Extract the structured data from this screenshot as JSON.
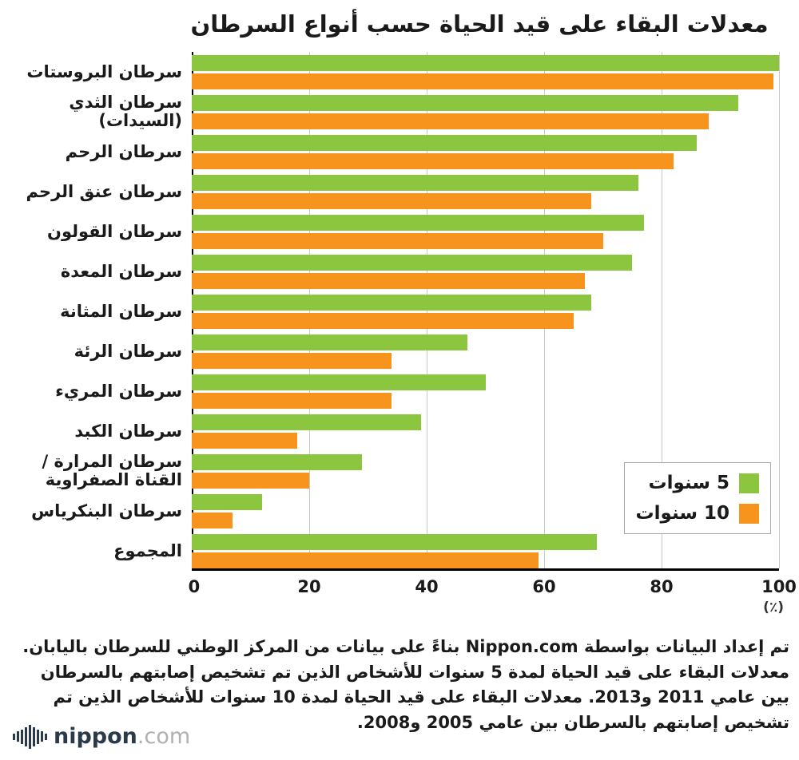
{
  "title": "معدلات البقاء على قيد الحياة حسب أنواع السرطان",
  "chart_data": {
    "type": "bar",
    "orientation": "horizontal",
    "title": "معدلات البقاء على قيد الحياة حسب أنواع السرطان",
    "categories": [
      "سرطان البروستات",
      "سرطان الثدي (السيدات)",
      "سرطان الرحم",
      "سرطان عنق الرحم",
      "سرطان القولون",
      "سرطان المعدة",
      "سرطان المثانة",
      "سرطان الرئة",
      "سرطان المريء",
      "سرطان الكبد",
      "سرطان المرارة / القناة الصفراوية",
      "سرطان البنكرياس",
      "المجموع"
    ],
    "series": [
      {
        "name": "5 سنوات",
        "color": "#8CC63F",
        "values": [
          100,
          93,
          86,
          76,
          77,
          75,
          68,
          47,
          50,
          39,
          29,
          12,
          69
        ]
      },
      {
        "name": "10 سنوات",
        "color": "#F7941D",
        "values": [
          99,
          88,
          82,
          68,
          70,
          67,
          65,
          34,
          34,
          18,
          20,
          7,
          59
        ]
      }
    ],
    "xlim": [
      0,
      100
    ],
    "x_ticks": [
      0,
      20,
      40,
      60,
      80,
      100
    ],
    "x_unit": "(٪)",
    "grid": true,
    "legend_position": "right-lower"
  },
  "footer": {
    "text": "تم إعداد البيانات بواسطة Nippon.com بناءً على بيانات من المركز الوطني للسرطان باليابان. معدلات البقاء على قيد الحياة لمدة 5 سنوات للأشخاص الذين تم تشخيص إصابتهم بالسرطان بين عامي 2011 و2013. معدلات البقاء على قيد الحياة لمدة 10 سنوات للأشخاص الذين تم تشخيص إصابتهم بالسرطان بين عامي 2005 و2008.",
    "logo_text": "nippon",
    "logo_suffix": ".com"
  }
}
